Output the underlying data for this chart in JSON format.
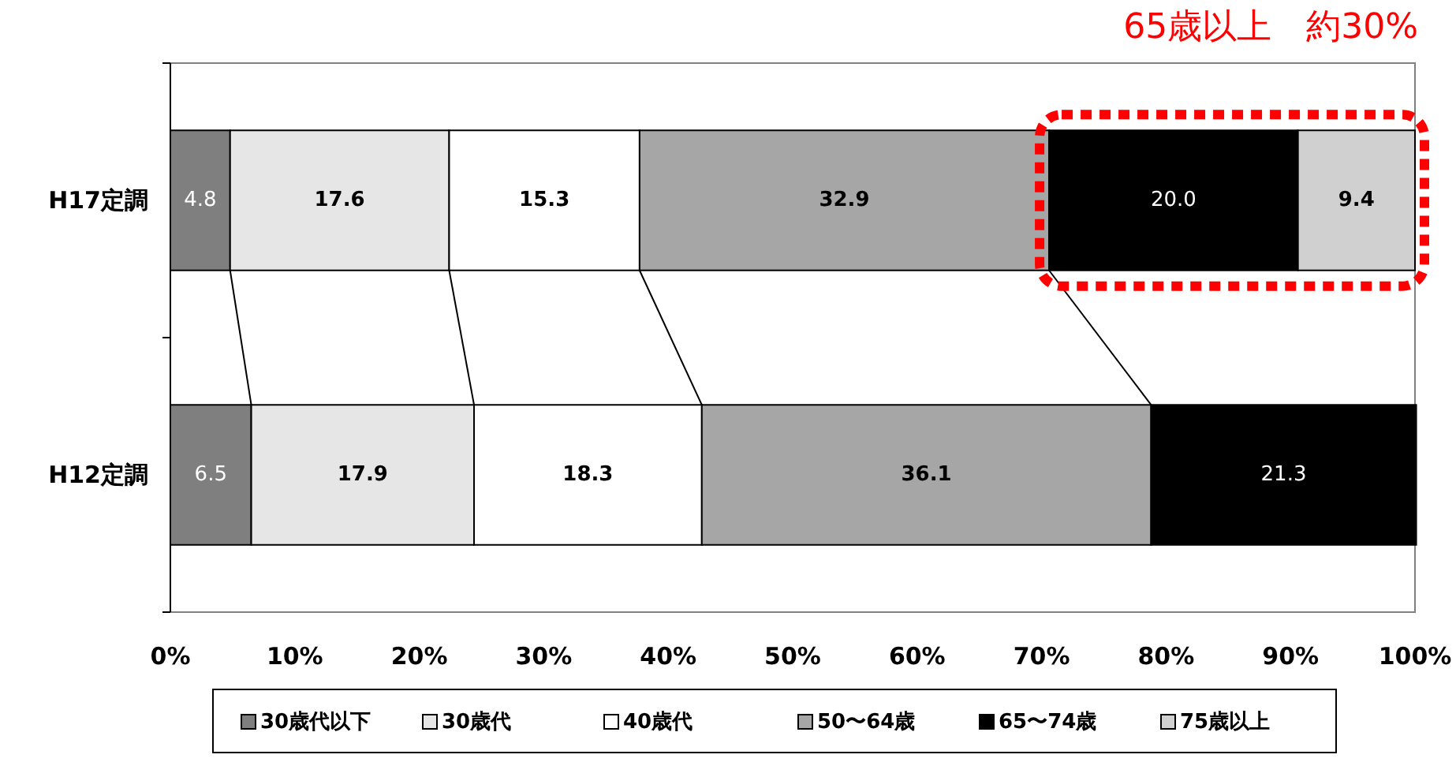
{
  "chart_data": {
    "type": "bar",
    "orientation": "horizontal",
    "stacked": true,
    "legend": "bottom",
    "grid": false,
    "categories": [
      "H17定調",
      "H12定調"
    ],
    "series": [
      {
        "name": "30歳代以下",
        "color": "#7f7f7f",
        "values": [
          4.8,
          6.5
        ],
        "value_labels": [
          "4.8",
          "6.5"
        ]
      },
      {
        "name": "30歳代",
        "color": "#e6e6e6",
        "values": [
          17.6,
          17.9
        ],
        "value_labels": [
          "17.6",
          "17.9"
        ]
      },
      {
        "name": "40歳代",
        "color": "#ffffff",
        "values": [
          15.3,
          18.3
        ],
        "value_labels": [
          "15.3",
          "18.3"
        ]
      },
      {
        "name": "50〜64歳",
        "color": "#a6a6a6",
        "values": [
          32.9,
          36.1
        ],
        "value_labels": [
          "32.9",
          "36.1"
        ]
      },
      {
        "name": "65〜74歳",
        "color": "#000000",
        "values": [
          20.0,
          21.3
        ],
        "value_labels": [
          "20.0",
          "21.3"
        ]
      },
      {
        "name": "75歳以上",
        "color": "#d0d0d0",
        "values": [
          9.4,
          null
        ],
        "value_labels": [
          "9.4",
          null
        ]
      }
    ],
    "xlim": [
      0,
      100
    ],
    "xticks": [
      {
        "value": 0,
        "label": "0%"
      },
      {
        "value": 10,
        "label": "10%"
      },
      {
        "value": 20,
        "label": "20%"
      },
      {
        "value": 30,
        "label": "30%"
      },
      {
        "value": 40,
        "label": "40%"
      },
      {
        "value": 50,
        "label": "50%"
      },
      {
        "value": 60,
        "label": "60%"
      },
      {
        "value": 70,
        "label": "70%"
      },
      {
        "value": 80,
        "label": "80%"
      },
      {
        "value": 90,
        "label": "90%"
      },
      {
        "value": 100,
        "label": "100%"
      }
    ],
    "annotations": [
      "65歳以上　約30%"
    ]
  }
}
